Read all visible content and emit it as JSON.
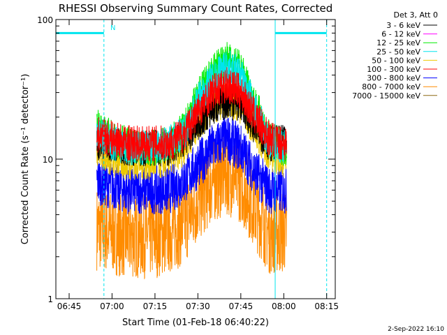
{
  "chart_data": {
    "type": "line",
    "title": "RHESSI Observing Summary Count Rates, Corrected",
    "xlabel": "Start Time (01-Feb-18 06:40:22)",
    "ylabel": "Corrected Count Rate (s⁻¹ detector⁻¹)",
    "yscale": "log",
    "ylim": [
      1,
      100
    ],
    "xlim": [
      "06:40:22",
      "08:18:00"
    ],
    "x_ticks": [
      "06:45",
      "07:00",
      "07:15",
      "07:30",
      "07:45",
      "08:00",
      "08:15"
    ],
    "y_ticks": [
      "1",
      "10",
      "100"
    ],
    "legend_header": "Det 3, Att 0",
    "legend_position": "top-right",
    "data_start": "06:54:40",
    "data_end": "08:01:00",
    "series": [
      {
        "name": "3 - 6 keV",
        "color": "#000000",
        "x": [
          "06:55",
          "07:00",
          "07:05",
          "07:10",
          "07:15",
          "07:20",
          "07:25",
          "07:30",
          "07:35",
          "07:40",
          "07:45",
          "07:50",
          "07:55",
          "08:00"
        ],
        "values": [
          13,
          13,
          12,
          12,
          12,
          12,
          14,
          18,
          23,
          26,
          25,
          17,
          13,
          13
        ]
      },
      {
        "name": "6 - 12 keV",
        "color": "#ff00ff",
        "x": [],
        "values": []
      },
      {
        "name": "12 - 25 keV",
        "color": "#00ee00",
        "x": [
          "06:55",
          "07:00",
          "07:05",
          "07:10",
          "07:15",
          "07:20",
          "07:25",
          "07:30",
          "07:35",
          "07:40",
          "07:45",
          "07:50",
          "07:55",
          "08:00"
        ],
        "values": [
          17,
          14,
          13,
          12,
          12,
          13,
          16,
          28,
          42,
          52,
          45,
          25,
          14,
          12
        ]
      },
      {
        "name": "25 - 50 keV",
        "color": "#00e5ee",
        "x": [
          "06:55",
          "07:00",
          "07:05",
          "07:10",
          "07:15",
          "07:20",
          "07:25",
          "07:30",
          "07:35",
          "07:40",
          "07:45",
          "07:50",
          "07:55",
          "08:00"
        ],
        "values": [
          16,
          13,
          12,
          12,
          12,
          13,
          15,
          26,
          38,
          46,
          40,
          23,
          13,
          12
        ]
      },
      {
        "name": "50 - 100 keV",
        "color": "#eec900",
        "x": [
          "06:55",
          "07:00",
          "07:05",
          "07:10",
          "07:15",
          "07:20",
          "07:25",
          "07:30",
          "07:35",
          "07:40",
          "07:45",
          "07:50",
          "07:55",
          "08:00"
        ],
        "values": [
          12,
          10,
          9.5,
          9.5,
          9.5,
          10,
          12,
          18,
          24,
          27,
          24,
          16,
          11,
          10
        ]
      },
      {
        "name": "100 - 300 keV",
        "color": "#ff0000",
        "x": [
          "06:55",
          "07:00",
          "07:05",
          "07:10",
          "07:15",
          "07:20",
          "07:25",
          "07:30",
          "07:35",
          "07:40",
          "07:45",
          "07:50",
          "07:55",
          "08:00"
        ],
        "values": [
          15,
          14,
          13,
          13,
          13,
          13,
          15,
          22,
          30,
          34,
          30,
          20,
          14,
          13
        ]
      },
      {
        "name": "300 - 800 keV",
        "color": "#0000ff",
        "x": [
          "06:55",
          "07:00",
          "07:05",
          "07:10",
          "07:15",
          "07:20",
          "07:25",
          "07:30",
          "07:35",
          "07:40",
          "07:45",
          "07:50",
          "07:55",
          "08:00"
        ],
        "values": [
          7,
          6.5,
          6,
          6,
          6,
          6,
          7,
          9,
          12,
          14,
          12,
          8,
          6,
          6
        ]
      },
      {
        "name": "800 - 7000 keV",
        "color": "#ff8c00",
        "x": [
          "06:55",
          "07:00",
          "07:05",
          "07:10",
          "07:15",
          "07:20",
          "07:25",
          "07:30",
          "07:35",
          "07:40",
          "07:45",
          "07:50",
          "07:55",
          "08:00"
        ],
        "values": [
          3.2,
          3,
          2.8,
          2.8,
          2.8,
          3,
          3.5,
          5,
          7,
          8,
          7,
          4.5,
          3,
          3
        ]
      },
      {
        "name": "7000 - 15000 keV",
        "color": "#8b6914",
        "x": [],
        "values": []
      }
    ],
    "vertical_lines": [
      {
        "time": "06:40:22",
        "style": "solid",
        "color": "#00e5ee"
      },
      {
        "time": "06:57:10",
        "style": "dashed",
        "color": "#00e5ee"
      },
      {
        "time": "07:57:00",
        "style": "solid",
        "color": "#00e5ee"
      },
      {
        "time": "08:15:00",
        "style": "dashed",
        "color": "#00e5ee"
      }
    ],
    "night_bars": [
      {
        "start": "06:40:22",
        "end": "06:57:10",
        "value": 80
      },
      {
        "start": "07:57:00",
        "end": "08:15:00",
        "value": 80
      }
    ],
    "annotation": "N",
    "footer_date": "2-Sep-2022 16:10",
    "colors": {
      "background": "#ffffff",
      "axes": "#000000",
      "flag": "#00e5ee"
    }
  }
}
